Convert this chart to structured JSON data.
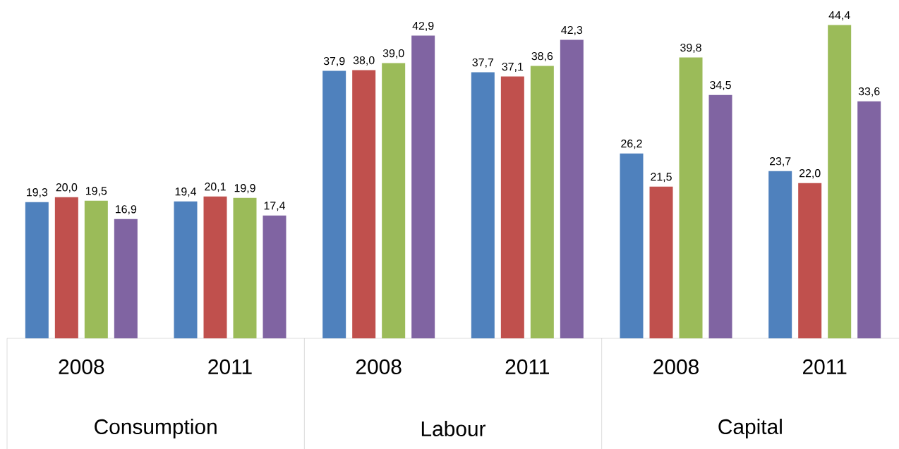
{
  "chart_data": {
    "type": "bar",
    "categories": [
      "2008",
      "2011",
      "2008",
      "2011",
      "2008",
      "2011"
    ],
    "annotations": [
      "Consumption",
      "Labour",
      "Capital"
    ],
    "series": [
      {
        "color": "#4f81bd",
        "values": [
          19.3,
          19.4,
          37.9,
          37.7,
          26.2,
          23.7
        ],
        "value_labels": [
          "19,3",
          "19,4",
          "37,9",
          "37,7",
          "26,2",
          "23,7"
        ]
      },
      {
        "color": "#c0504d",
        "values": [
          20.0,
          20.1,
          38.0,
          37.1,
          21.5,
          22.0
        ],
        "value_labels": [
          "20,0",
          "20,1",
          "38,0",
          "37,1",
          "21,5",
          "22,0"
        ]
      },
      {
        "color": "#9bbb59",
        "values": [
          19.5,
          19.9,
          39.0,
          38.6,
          39.8,
          44.4
        ],
        "value_labels": [
          "19,5",
          "19,9",
          "39,0",
          "38,6",
          "39,8",
          "44,4"
        ]
      },
      {
        "color": "#8064a2",
        "values": [
          16.9,
          17.4,
          42.9,
          42.3,
          34.5,
          33.6
        ],
        "value_labels": [
          "16,9",
          "17,4",
          "42,9",
          "42,3",
          "34,5",
          "33,6"
        ]
      }
    ],
    "grid": false
  }
}
